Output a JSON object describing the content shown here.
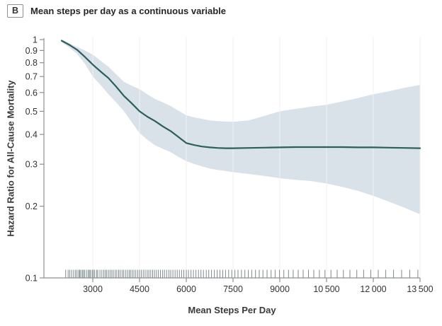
{
  "panel": {
    "label": "B",
    "title": "Mean steps per day as a continuous variable"
  },
  "chart_data": {
    "type": "line",
    "title": "Mean steps per day as a continuous variable",
    "xlabel": "Mean Steps Per Day",
    "ylabel": "Hazard Ratio for All-Cause Mortality",
    "x_domain": [
      1432,
      13500
    ],
    "y_domain": [
      0.1,
      1
    ],
    "y_scale": "log",
    "grid": "vertical-only",
    "x_ticks": [
      {
        "value": 3000,
        "label": "3000"
      },
      {
        "value": 4500,
        "label": "4500"
      },
      {
        "value": 6000,
        "label": "6000"
      },
      {
        "value": 7500,
        "label": "7500"
      },
      {
        "value": 9000,
        "label": "9000"
      },
      {
        "value": 10500,
        "label": "10 500"
      },
      {
        "value": 12000,
        "label": "12 000"
      },
      {
        "value": 13500,
        "label": "13 500"
      }
    ],
    "y_ticks": [
      {
        "value": 1.0,
        "label": "1"
      },
      {
        "value": 0.9,
        "label": "0.9"
      },
      {
        "value": 0.8,
        "label": "0.8"
      },
      {
        "value": 0.7,
        "label": "0.7"
      },
      {
        "value": 0.6,
        "label": "0.6"
      },
      {
        "value": 0.5,
        "label": "0.5"
      },
      {
        "value": 0.4,
        "label": "0.4"
      },
      {
        "value": 0.3,
        "label": "0.3"
      },
      {
        "value": 0.2,
        "label": "0.2"
      },
      {
        "value": 0.1,
        "label": "0.1"
      }
    ],
    "series": [
      {
        "name": "hazard-ratio-spline",
        "x": [
          2000,
          2250,
          2500,
          2750,
          3000,
          3250,
          3500,
          3750,
          4000,
          4250,
          4500,
          4750,
          5000,
          5250,
          5500,
          5750,
          6000,
          6250,
          6500,
          6750,
          7000,
          7250,
          7500,
          8000,
          8500,
          9000,
          9500,
          10000,
          10500,
          11000,
          11500,
          12000,
          12500,
          13000,
          13500
        ],
        "y": [
          0.99,
          0.95,
          0.905,
          0.845,
          0.785,
          0.735,
          0.69,
          0.635,
          0.58,
          0.54,
          0.5,
          0.475,
          0.455,
          0.432,
          0.413,
          0.39,
          0.368,
          0.361,
          0.356,
          0.353,
          0.351,
          0.35,
          0.35,
          0.351,
          0.352,
          0.353,
          0.354,
          0.354,
          0.354,
          0.354,
          0.353,
          0.353,
          0.352,
          0.351,
          0.35
        ]
      }
    ],
    "ci_band": {
      "x": [
        2000,
        2250,
        2500,
        2750,
        3000,
        3250,
        3500,
        3750,
        4000,
        4250,
        4500,
        4750,
        5000,
        5250,
        5500,
        5750,
        6000,
        6250,
        6500,
        6750,
        7000,
        7250,
        7500,
        8000,
        8500,
        9000,
        9500,
        10000,
        10500,
        11000,
        11500,
        12000,
        12500,
        13000,
        13500
      ],
      "lower": [
        0.975,
        0.925,
        0.87,
        0.79,
        0.7,
        0.645,
        0.59,
        0.545,
        0.5,
        0.45,
        0.405,
        0.38,
        0.36,
        0.348,
        0.337,
        0.322,
        0.309,
        0.301,
        0.294,
        0.288,
        0.284,
        0.281,
        0.278,
        0.273,
        0.268,
        0.262,
        0.258,
        0.255,
        0.249,
        0.241,
        0.232,
        0.221,
        0.209,
        0.197,
        0.185
      ],
      "upper": [
        1.0,
        0.965,
        0.93,
        0.9,
        0.865,
        0.815,
        0.77,
        0.715,
        0.665,
        0.64,
        0.62,
        0.59,
        0.563,
        0.545,
        0.526,
        0.503,
        0.481,
        0.472,
        0.465,
        0.458,
        0.455,
        0.453,
        0.452,
        0.458,
        0.478,
        0.5,
        0.512,
        0.523,
        0.533,
        0.55,
        0.568,
        0.59,
        0.607,
        0.627,
        0.646
      ]
    },
    "rug_x": [
      2130,
      2210,
      2260,
      2320,
      2385,
      2440,
      2490,
      2545,
      2580,
      2615,
      2665,
      2700,
      2740,
      2800,
      2855,
      2890,
      2925,
      2980,
      3015,
      3060,
      3120,
      3160,
      3230,
      3290,
      3350,
      3400,
      3445,
      3500,
      3555,
      3610,
      3660,
      3720,
      3770,
      3830,
      3880,
      3940,
      3990,
      4050,
      4110,
      4165,
      4210,
      4265,
      4320,
      4380,
      4440,
      4500,
      4560,
      4620,
      4680,
      4745,
      4800,
      4860,
      4920,
      4980,
      5040,
      5105,
      5170,
      5240,
      5300,
      5370,
      5440,
      5500,
      5570,
      5640,
      5710,
      5780,
      5850,
      5920,
      6000,
      6070,
      6150,
      6230,
      6310,
      6390,
      6470,
      6550,
      6640,
      6720,
      6810,
      6900,
      6990,
      7080,
      7170,
      7260,
      7360,
      7460,
      7560,
      7660,
      7770,
      7880,
      7990,
      8100,
      8220,
      8340,
      8460,
      8590,
      8720,
      8850,
      8990,
      9130,
      9280,
      9430,
      9590,
      9750,
      9920,
      10090,
      10270,
      10450,
      10640,
      10840,
      11040,
      11250,
      11470,
      11690,
      11920,
      12160,
      12400,
      12650,
      12910,
      13170,
      13430
    ],
    "legend": "none",
    "colors": {
      "line": "#2a5f5b",
      "band": "#d9e1e9",
      "gridline": "#e2e2e2",
      "axis": "#8f8f8f",
      "tick_text": "#333333",
      "rug": "#46585c"
    }
  }
}
